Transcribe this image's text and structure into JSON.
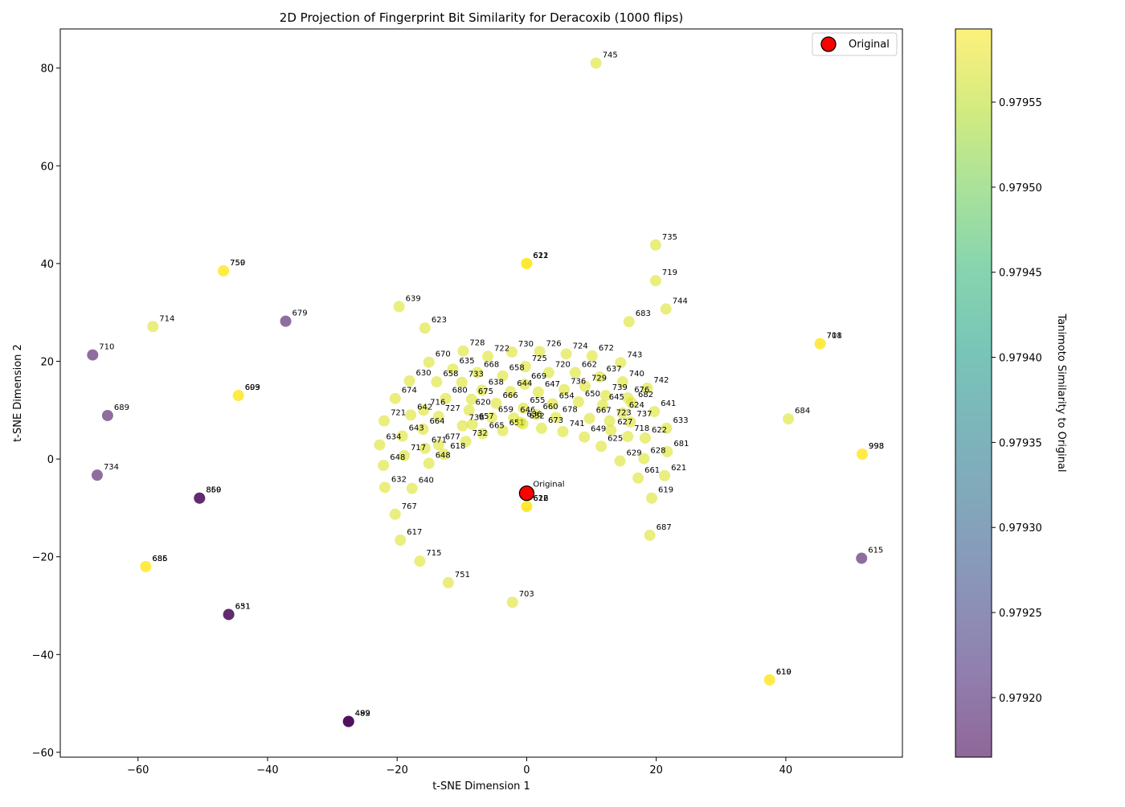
{
  "chart_data": {
    "type": "scatter",
    "title": "2D Projection of Fingerprint Bit Similarity for Deracoxib (1000 flips)",
    "xlabel": "t-SNE Dimension 1",
    "ylabel": "t-SNE Dimension 2",
    "xlim": [
      -72,
      58
    ],
    "ylim": [
      -61,
      88
    ],
    "xticks": [
      -60,
      -40,
      -20,
      0,
      20,
      40
    ],
    "yticks": [
      -60,
      -40,
      -20,
      0,
      20,
      40,
      60,
      80
    ],
    "xtick_labels": [
      "−60",
      "−40",
      "−20",
      "0",
      "20",
      "40"
    ],
    "ytick_labels": [
      "−60",
      "−40",
      "−20",
      "0",
      "20",
      "40",
      "60",
      "80"
    ],
    "grid": false,
    "legend": {
      "position": "top-right",
      "entries": [
        "Original"
      ]
    },
    "colorbar": {
      "label": "Tanimoto Similarity to Original",
      "range": [
        0.979165,
        0.979593
      ],
      "ticks": [
        0.9792,
        0.97925,
        0.9793,
        0.97935,
        0.9794,
        0.97945,
        0.9795,
        0.97955
      ],
      "tick_labels": [
        "0.97920",
        "0.97925",
        "0.97930",
        "0.97935",
        "0.97940",
        "0.97945",
        "0.97950",
        "0.97955"
      ],
      "colormap": "viridis",
      "stops": [
        "#440154",
        "#482878",
        "#3e4989",
        "#31688e",
        "#26828e",
        "#1f9e89",
        "#35b779",
        "#6ece58",
        "#b5de2b",
        "#fde725"
      ]
    },
    "original": {
      "label": "Original",
      "x": 0,
      "y": -7,
      "color": "#ff0000"
    },
    "stacked_clusters": [
      {
        "x": -46.8,
        "y": 38.5,
        "similarity": 0.979593,
        "labels": [
          "759",
          "750"
        ]
      },
      {
        "x": -44.5,
        "y": 13.0,
        "similarity": 0.979593,
        "labels": [
          "693",
          "609"
        ]
      },
      {
        "x": 0,
        "y": 40.0,
        "similarity": 0.979593,
        "labels": [
          "621",
          "612",
          "611"
        ]
      },
      {
        "x": 45.3,
        "y": 23.6,
        "similarity": 0.979593,
        "labels": [
          "708",
          "711"
        ]
      },
      {
        "x": 51.8,
        "y": 1.0,
        "similarity": 0.979593,
        "labels": [
          "998",
          "993"
        ]
      },
      {
        "x": -50.5,
        "y": -8.0,
        "similarity": 0.979165,
        "labels": [
          "869",
          "850"
        ]
      },
      {
        "x": 0,
        "y": -9.7,
        "similarity": 0.979593,
        "labels": [
          "616",
          "612",
          "622"
        ]
      },
      {
        "x": -58.8,
        "y": -22.0,
        "similarity": 0.979593,
        "labels": [
          "686",
          "685"
        ]
      },
      {
        "x": -46.0,
        "y": -31.8,
        "similarity": 0.979165,
        "labels": [
          "631",
          "651"
        ]
      },
      {
        "x": 37.5,
        "y": -45.2,
        "similarity": 0.979593,
        "labels": [
          "619",
          "610"
        ]
      },
      {
        "x": -27.5,
        "y": -53.7,
        "similarity": 0.979165,
        "labels": [
          "499",
          "489",
          "492"
        ]
      }
    ],
    "points": [
      {
        "label": "745",
        "x": 10.7,
        "y": 81.0,
        "similarity": 0.97957
      },
      {
        "label": "735",
        "x": 19.9,
        "y": 43.8,
        "similarity": 0.97957
      },
      {
        "label": "719",
        "x": 19.9,
        "y": 36.5,
        "similarity": 0.97957
      },
      {
        "label": "744",
        "x": 21.5,
        "y": 30.7,
        "similarity": 0.97957
      },
      {
        "label": "683",
        "x": 15.8,
        "y": 28.1,
        "similarity": 0.97957
      },
      {
        "label": "639",
        "x": -19.7,
        "y": 31.2,
        "similarity": 0.97957
      },
      {
        "label": "623",
        "x": -15.7,
        "y": 26.8,
        "similarity": 0.97957
      },
      {
        "label": "714",
        "x": -57.7,
        "y": 27.1,
        "similarity": 0.97957
      },
      {
        "label": "679",
        "x": -37.2,
        "y": 28.2,
        "similarity": 0.97918
      },
      {
        "label": "710",
        "x": -67.0,
        "y": 21.3,
        "similarity": 0.97918
      },
      {
        "label": "689",
        "x": -64.7,
        "y": 8.9,
        "similarity": 0.97918
      },
      {
        "label": "734",
        "x": -66.3,
        "y": -3.3,
        "similarity": 0.97918
      },
      {
        "label": "615",
        "x": 51.7,
        "y": -20.3,
        "similarity": 0.97918
      },
      {
        "label": "684",
        "x": 40.4,
        "y": 8.2,
        "similarity": 0.97957
      },
      {
        "label": "728",
        "x": -9.8,
        "y": 22.1,
        "similarity": 0.97957
      },
      {
        "label": "730",
        "x": -2.3,
        "y": 21.9,
        "similarity": 0.97957
      },
      {
        "label": "726",
        "x": 2.0,
        "y": 22.0,
        "similarity": 0.97957
      },
      {
        "label": "724",
        "x": 6.1,
        "y": 21.5,
        "similarity": 0.97957
      },
      {
        "label": "672",
        "x": 10.1,
        "y": 21.1,
        "similarity": 0.97957
      },
      {
        "label": "722",
        "x": -6.0,
        "y": 21.0,
        "similarity": 0.97957
      },
      {
        "label": "670",
        "x": -15.1,
        "y": 19.8,
        "similarity": 0.97957
      },
      {
        "label": "743",
        "x": 14.5,
        "y": 19.7,
        "similarity": 0.97957
      },
      {
        "label": "635",
        "x": -11.4,
        "y": 18.4,
        "similarity": 0.97957
      },
      {
        "label": "725",
        "x": -0.2,
        "y": 18.9,
        "similarity": 0.97957
      },
      {
        "label": "668",
        "x": -7.6,
        "y": 17.7,
        "similarity": 0.97957
      },
      {
        "label": "658",
        "x": -3.7,
        "y": 17.0,
        "similarity": 0.97957
      },
      {
        "label": "720",
        "x": 3.4,
        "y": 17.7,
        "similarity": 0.97957
      },
      {
        "label": "662",
        "x": 7.5,
        "y": 17.7,
        "similarity": 0.97957
      },
      {
        "label": "637",
        "x": 11.3,
        "y": 16.8,
        "similarity": 0.97957
      },
      {
        "label": "740",
        "x": 14.8,
        "y": 15.8,
        "similarity": 0.97957
      },
      {
        "label": "630",
        "x": -18.1,
        "y": 16.0,
        "similarity": 0.97957
      },
      {
        "label": "658",
        "x": -13.9,
        "y": 15.8,
        "similarity": 0.97957
      },
      {
        "label": "733",
        "x": -10.0,
        "y": 15.7,
        "similarity": 0.97957
      },
      {
        "label": "669",
        "x": -0.3,
        "y": 15.3,
        "similarity": 0.97957
      },
      {
        "label": "729",
        "x": 9.0,
        "y": 14.9,
        "similarity": 0.97957
      },
      {
        "label": "742",
        "x": 18.6,
        "y": 14.5,
        "similarity": 0.97957
      },
      {
        "label": "638",
        "x": -6.9,
        "y": 14.1,
        "similarity": 0.97957
      },
      {
        "label": "644",
        "x": -2.5,
        "y": 13.8,
        "similarity": 0.97957
      },
      {
        "label": "647",
        "x": 1.8,
        "y": 13.7,
        "similarity": 0.97957
      },
      {
        "label": "736",
        "x": 5.8,
        "y": 14.2,
        "similarity": 0.97957
      },
      {
        "label": "739",
        "x": 12.2,
        "y": 13.0,
        "similarity": 0.97957
      },
      {
        "label": "676",
        "x": 15.6,
        "y": 12.5,
        "similarity": 0.97957
      },
      {
        "label": "674",
        "x": -20.3,
        "y": 12.4,
        "similarity": 0.97957
      },
      {
        "label": "680",
        "x": -12.5,
        "y": 12.4,
        "similarity": 0.97957
      },
      {
        "label": "675",
        "x": -8.5,
        "y": 12.2,
        "similarity": 0.97957
      },
      {
        "label": "666",
        "x": -4.7,
        "y": 11.4,
        "similarity": 0.97957
      },
      {
        "label": "655",
        "x": -0.5,
        "y": 10.4,
        "similarity": 0.97957
      },
      {
        "label": "654",
        "x": 4.0,
        "y": 11.3,
        "similarity": 0.97957
      },
      {
        "label": "650",
        "x": 8.0,
        "y": 11.7,
        "similarity": 0.97957
      },
      {
        "label": "645",
        "x": 11.7,
        "y": 11.0,
        "similarity": 0.97957
      },
      {
        "label": "682",
        "x": 16.2,
        "y": 11.5,
        "similarity": 0.97957
      },
      {
        "label": "716",
        "x": -15.9,
        "y": 10.0,
        "similarity": 0.97957
      },
      {
        "label": "620",
        "x": -8.9,
        "y": 10.0,
        "similarity": 0.97957
      },
      {
        "label": "646",
        "x": -2.0,
        "y": 8.4,
        "similarity": 0.97957
      },
      {
        "label": "660",
        "x": 1.5,
        "y": 9.1,
        "similarity": 0.97957
      },
      {
        "label": "624",
        "x": 14.8,
        "y": 9.4,
        "similarity": 0.97957
      },
      {
        "label": "641",
        "x": 19.7,
        "y": 9.7,
        "similarity": 0.97957
      },
      {
        "label": "642",
        "x": -17.9,
        "y": 9.0,
        "similarity": 0.97957
      },
      {
        "label": "727",
        "x": -13.6,
        "y": 8.7,
        "similarity": 0.97957
      },
      {
        "label": "659",
        "x": -5.4,
        "y": 8.5,
        "similarity": 0.97957
      },
      {
        "label": "678",
        "x": 4.5,
        "y": 8.5,
        "similarity": 0.97957
      },
      {
        "label": "667",
        "x": 9.7,
        "y": 8.3,
        "similarity": 0.97957
      },
      {
        "label": "723",
        "x": 12.8,
        "y": 7.8,
        "similarity": 0.97957
      },
      {
        "label": "657",
        "x": -8.4,
        "y": 7.1,
        "similarity": 0.97957
      },
      {
        "label": "636",
        "x": -1.0,
        "y": 7.5,
        "similarity": 0.97957
      },
      {
        "label": "673",
        "x": 2.3,
        "y": 6.3,
        "similarity": 0.97957
      },
      {
        "label": "741",
        "x": 5.6,
        "y": 5.6,
        "similarity": 0.97957
      },
      {
        "label": "737",
        "x": 16.0,
        "y": 7.6,
        "similarity": 0.97957
      },
      {
        "label": "721",
        "x": -22.0,
        "y": 7.8,
        "similarity": 0.97957
      },
      {
        "label": "664",
        "x": -16.0,
        "y": 6.1,
        "similarity": 0.97957
      },
      {
        "label": "738",
        "x": -9.9,
        "y": 6.8,
        "similarity": 0.97957
      },
      {
        "label": "651",
        "x": -3.7,
        "y": 5.8,
        "similarity": 0.97957
      },
      {
        "label": "652",
        "x": -0.6,
        "y": 7.2,
        "similarity": 0.97957
      },
      {
        "label": "627",
        "x": 13.0,
        "y": 5.9,
        "similarity": 0.97957
      },
      {
        "label": "633",
        "x": 21.6,
        "y": 6.3,
        "similarity": 0.97957
      },
      {
        "label": "718",
        "x": 15.6,
        "y": 4.6,
        "similarity": 0.97957
      },
      {
        "label": "643",
        "x": -19.2,
        "y": 4.7,
        "similarity": 0.97957
      },
      {
        "label": "665",
        "x": -6.8,
        "y": 5.2,
        "similarity": 0.97957
      },
      {
        "label": "649",
        "x": 8.9,
        "y": 4.5,
        "similarity": 0.97957
      },
      {
        "label": "622",
        "x": 18.3,
        "y": 4.3,
        "similarity": 0.97957
      },
      {
        "label": "677",
        "x": -13.6,
        "y": 2.9,
        "similarity": 0.97957
      },
      {
        "label": "732",
        "x": -9.4,
        "y": 3.6,
        "similarity": 0.97957
      },
      {
        "label": "625",
        "x": 11.5,
        "y": 2.6,
        "similarity": 0.97957
      },
      {
        "label": "634",
        "x": -22.7,
        "y": 2.9,
        "similarity": 0.97957
      },
      {
        "label": "681",
        "x": 21.7,
        "y": 1.5,
        "similarity": 0.97957
      },
      {
        "label": "671",
        "x": -15.7,
        "y": 2.2,
        "similarity": 0.97957
      },
      {
        "label": "618",
        "x": -12.8,
        "y": 1.0,
        "similarity": 0.97957
      },
      {
        "label": "628",
        "x": 18.1,
        "y": 0.1,
        "similarity": 0.97957
      },
      {
        "label": "629",
        "x": 14.4,
        "y": -0.4,
        "similarity": 0.97957
      },
      {
        "label": "717",
        "x": -18.9,
        "y": 0.7,
        "similarity": 0.97957
      },
      {
        "label": "648",
        "x": -22.1,
        "y": -1.3,
        "similarity": 0.97957
      },
      {
        "label": "648",
        "x": -15.1,
        "y": -0.9,
        "similarity": 0.97957
      },
      {
        "label": "621",
        "x": 21.3,
        "y": -3.4,
        "similarity": 0.97957
      },
      {
        "label": "661",
        "x": 17.2,
        "y": -3.9,
        "similarity": 0.97957
      },
      {
        "label": "632",
        "x": -21.9,
        "y": -5.8,
        "similarity": 0.97957
      },
      {
        "label": "640",
        "x": -17.7,
        "y": -6.0,
        "similarity": 0.97957
      },
      {
        "label": "619",
        "x": 19.3,
        "y": -8.0,
        "similarity": 0.97957
      },
      {
        "label": "767",
        "x": -20.3,
        "y": -11.3,
        "similarity": 0.97957
      },
      {
        "label": "687",
        "x": 19.0,
        "y": -15.6,
        "similarity": 0.97957
      },
      {
        "label": "617",
        "x": -19.5,
        "y": -16.6,
        "similarity": 0.97957
      },
      {
        "label": "715",
        "x": -16.5,
        "y": -20.9,
        "similarity": 0.97957
      },
      {
        "label": "751",
        "x": -12.1,
        "y": -25.3,
        "similarity": 0.97957
      },
      {
        "label": "703",
        "x": -2.2,
        "y": -29.3,
        "similarity": 0.97957
      }
    ]
  }
}
